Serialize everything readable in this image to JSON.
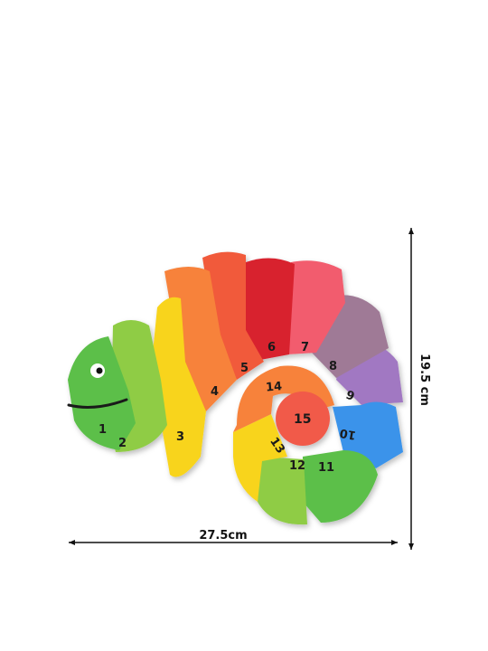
{
  "product": {
    "pieces": [
      {
        "label": "1",
        "color": "#5cbf4a"
      },
      {
        "label": "2",
        "color": "#8fcc45"
      },
      {
        "label": "3",
        "color": "#f8d41c"
      },
      {
        "label": "4",
        "color": "#f7823a"
      },
      {
        "label": "5",
        "color": "#f15a3a"
      },
      {
        "label": "6",
        "color": "#d8222f"
      },
      {
        "label": "7",
        "color": "#f25c6e"
      },
      {
        "label": "8",
        "color": "#9f7a96"
      },
      {
        "label": "9",
        "color": "#a178c2"
      },
      {
        "label": "10",
        "color": "#3a93ea"
      },
      {
        "label": "11",
        "color": "#5cbf4a"
      },
      {
        "label": "12",
        "color": "#8fcc45"
      },
      {
        "label": "13",
        "color": "#f8d41c"
      },
      {
        "label": "14",
        "color": "#f7823a"
      },
      {
        "label": "15",
        "color": "#f15a4a"
      }
    ]
  },
  "dimensions": {
    "width_label": "27.5cm",
    "height_label": "19.5 cm"
  }
}
